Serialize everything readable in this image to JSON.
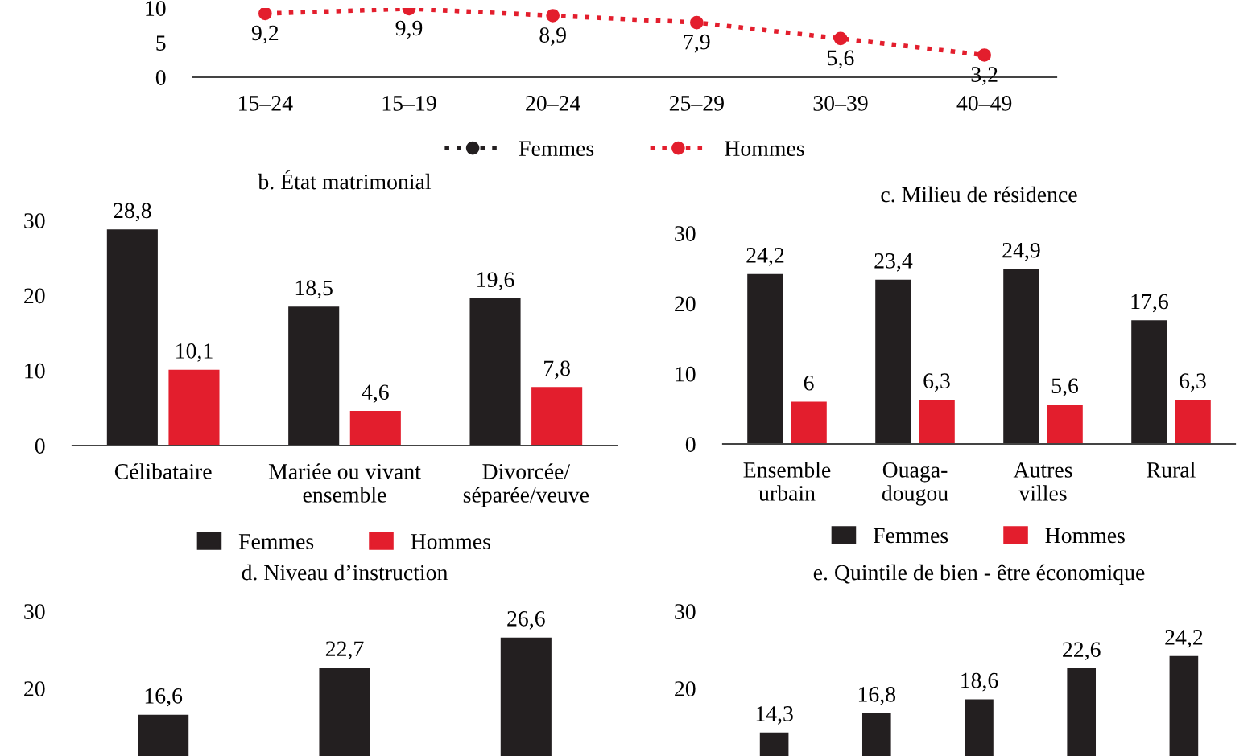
{
  "chart_data": [
    {
      "type": "line",
      "categories": [
        "15–24",
        "15–19",
        "20–24",
        "25–29",
        "30–39",
        "40–49"
      ],
      "ylim": [
        0,
        10
      ],
      "yticks": [
        0,
        5,
        10
      ],
      "marker": "circle",
      "line_style": "dotted",
      "legend": "bottom",
      "grid": false,
      "series": [
        {
          "name": "Femmes",
          "color": "#231f20",
          "values": [
            null,
            null,
            null,
            null,
            null,
            null
          ]
        },
        {
          "name": "Hommes",
          "color": "#e31e2d",
          "values": [
            9.2,
            9.9,
            8.9,
            7.9,
            5.6,
            3.2
          ],
          "value_labels": [
            "9,2",
            "9,9",
            "8,9",
            "7,9",
            "5,6",
            "3,2"
          ]
        }
      ]
    },
    {
      "type": "bar",
      "title": "b. État matrimonial",
      "categories": [
        "Célibataire",
        "Mariée ou vivant\nensemble",
        "Divorcée/\nséparée/veuve"
      ],
      "ylim": [
        0,
        30
      ],
      "yticks": [
        0,
        10,
        20,
        30
      ],
      "legend": "bottom",
      "grid": false,
      "series": [
        {
          "name": "Femmes",
          "color": "#231f20",
          "values": [
            28.8,
            18.5,
            19.6
          ],
          "value_labels": [
            "28,8",
            "18,5",
            "19,6"
          ]
        },
        {
          "name": "Hommes",
          "color": "#e31e2d",
          "values": [
            10.1,
            4.6,
            7.8
          ],
          "value_labels": [
            "10,1",
            "4,6",
            "7,8"
          ]
        }
      ]
    },
    {
      "type": "bar",
      "title": "c. Milieu de résidence",
      "categories": [
        "Ensemble\nurbain",
        "Ouaga-\ndougou",
        "Autres\nvilles",
        "Rural"
      ],
      "ylim": [
        0,
        30
      ],
      "yticks": [
        0,
        10,
        20,
        30
      ],
      "legend": "bottom",
      "grid": false,
      "series": [
        {
          "name": "Femmes",
          "color": "#231f20",
          "values": [
            24.2,
            23.4,
            24.9,
            17.6
          ],
          "value_labels": [
            "24,2",
            "23,4",
            "24,9",
            "17,6"
          ]
        },
        {
          "name": "Hommes",
          "color": "#e31e2d",
          "values": [
            6,
            6.3,
            5.6,
            6.3
          ],
          "value_labels": [
            "6",
            "6,3",
            "5,6",
            "6,3"
          ]
        }
      ]
    },
    {
      "type": "bar",
      "title": "d. Niveau d’instruction",
      "categories": [
        null,
        null,
        null
      ],
      "ylim": [
        0,
        30
      ],
      "yticks": [
        20,
        30
      ],
      "grid": false,
      "series": [
        {
          "color": "#231f20",
          "values": [
            16.6,
            22.7,
            26.6
          ],
          "value_labels": [
            "16,6",
            "22,7",
            "26,6"
          ]
        }
      ]
    },
    {
      "type": "bar",
      "title": "e. Quintile de bien - être économique",
      "categories": [
        null,
        null,
        null,
        null,
        null
      ],
      "ylim": [
        0,
        30
      ],
      "yticks": [
        20,
        30
      ],
      "grid": false,
      "series": [
        {
          "color": "#231f20",
          "values": [
            14.3,
            16.8,
            18.6,
            22.6,
            24.2
          ],
          "value_labels": [
            "14,3",
            "16,8",
            "18,6",
            "22,6",
            "24,2"
          ]
        }
      ]
    }
  ]
}
